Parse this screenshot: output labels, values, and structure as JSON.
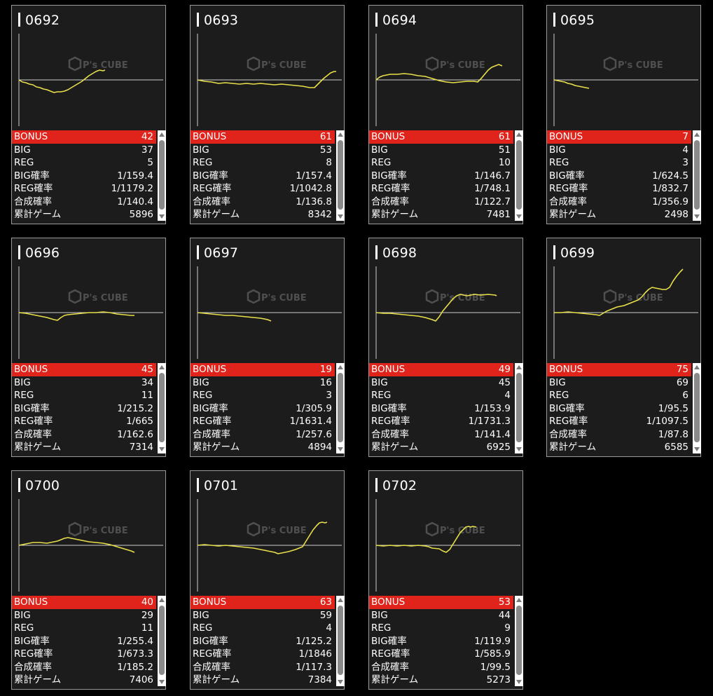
{
  "colors": {
    "background": "#000000",
    "card": "#1c1c1c",
    "bonus_row": "#e0241b",
    "graph_line": "#e8e04a",
    "axis": "#cfcfcf"
  },
  "watermark": {
    "text": "P's CUBE"
  },
  "labels": {
    "bonus": "BONUS",
    "big": "BIG",
    "reg": "REG",
    "big_prob": "BIG確率",
    "reg_prob": "REG確率",
    "combined_prob": "合成確率",
    "total_games": "累計ゲーム"
  },
  "machines": [
    {
      "id": "0692",
      "bonus": "42",
      "big": "37",
      "reg": "5",
      "big_prob": "1/159.4",
      "reg_prob": "1/1179.2",
      "combined_prob": "1/140.4",
      "total_games": "5896",
      "graph": [
        [
          0,
          0
        ],
        [
          5,
          -3
        ],
        [
          10,
          -4
        ],
        [
          15,
          -6
        ],
        [
          20,
          -7
        ],
        [
          25,
          -10
        ],
        [
          30,
          -11
        ],
        [
          35,
          -13
        ],
        [
          40,
          -14
        ],
        [
          45,
          -16
        ],
        [
          50,
          -18
        ],
        [
          55,
          -17
        ],
        [
          60,
          -17
        ],
        [
          65,
          -16
        ],
        [
          70,
          -14
        ],
        [
          75,
          -11
        ],
        [
          80,
          -8
        ],
        [
          85,
          -5
        ],
        [
          90,
          -2
        ],
        [
          95,
          2
        ],
        [
          100,
          6
        ],
        [
          105,
          9
        ],
        [
          110,
          12
        ],
        [
          115,
          14
        ],
        [
          120,
          13
        ],
        [
          123,
          14
        ]
      ]
    },
    {
      "id": "0693",
      "bonus": "61",
      "big": "53",
      "reg": "8",
      "big_prob": "1/157.4",
      "reg_prob": "1/1042.8",
      "combined_prob": "1/136.8",
      "total_games": "8342",
      "graph": [
        [
          0,
          0
        ],
        [
          10,
          -2
        ],
        [
          20,
          -3
        ],
        [
          30,
          -5
        ],
        [
          40,
          -4
        ],
        [
          50,
          -5
        ],
        [
          60,
          -6
        ],
        [
          70,
          -5
        ],
        [
          80,
          -6
        ],
        [
          90,
          -5
        ],
        [
          100,
          -6
        ],
        [
          110,
          -7
        ],
        [
          120,
          -6
        ],
        [
          130,
          -7
        ],
        [
          140,
          -8
        ],
        [
          150,
          -9
        ],
        [
          160,
          -11
        ],
        [
          167,
          -11
        ],
        [
          170,
          -8
        ],
        [
          175,
          -3
        ],
        [
          180,
          2
        ],
        [
          185,
          6
        ],
        [
          190,
          10
        ],
        [
          195,
          12
        ],
        [
          198,
          12
        ]
      ]
    },
    {
      "id": "0694",
      "bonus": "61",
      "big": "51",
      "reg": "10",
      "big_prob": "1/146.7",
      "reg_prob": "1/748.1",
      "combined_prob": "1/122.7",
      "total_games": "7481",
      "graph": [
        [
          0,
          0
        ],
        [
          5,
          4
        ],
        [
          10,
          6
        ],
        [
          15,
          7
        ],
        [
          20,
          8
        ],
        [
          30,
          8
        ],
        [
          40,
          9
        ],
        [
          50,
          8
        ],
        [
          60,
          6
        ],
        [
          70,
          5
        ],
        [
          80,
          2
        ],
        [
          90,
          -1
        ],
        [
          100,
          -3
        ],
        [
          110,
          -4
        ],
        [
          120,
          -3
        ],
        [
          130,
          -2
        ],
        [
          140,
          -2
        ],
        [
          145,
          -3
        ],
        [
          150,
          2
        ],
        [
          155,
          8
        ],
        [
          160,
          14
        ],
        [
          165,
          18
        ],
        [
          170,
          20
        ],
        [
          175,
          22
        ],
        [
          180,
          20
        ]
      ]
    },
    {
      "id": "0695",
      "bonus": "7",
      "big": "4",
      "reg": "3",
      "big_prob": "1/624.5",
      "reg_prob": "1/832.7",
      "combined_prob": "1/356.9",
      "total_games": "2498",
      "graph": [
        [
          0,
          0
        ],
        [
          5,
          -1
        ],
        [
          10,
          -2
        ],
        [
          15,
          -3
        ],
        [
          20,
          -5
        ],
        [
          25,
          -6
        ],
        [
          30,
          -8
        ],
        [
          35,
          -9
        ],
        [
          40,
          -10
        ],
        [
          45,
          -11
        ],
        [
          50,
          -12
        ]
      ]
    },
    {
      "id": "0696",
      "bonus": "45",
      "big": "34",
      "reg": "11",
      "big_prob": "1/215.2",
      "reg_prob": "1/665",
      "combined_prob": "1/162.6",
      "total_games": "7314",
      "graph": [
        [
          0,
          0
        ],
        [
          10,
          -1
        ],
        [
          20,
          -3
        ],
        [
          30,
          -5
        ],
        [
          40,
          -7
        ],
        [
          50,
          -10
        ],
        [
          55,
          -11
        ],
        [
          60,
          -7
        ],
        [
          65,
          -4
        ],
        [
          70,
          -3
        ],
        [
          80,
          -2
        ],
        [
          90,
          -1
        ],
        [
          100,
          0
        ],
        [
          110,
          0
        ],
        [
          120,
          1
        ],
        [
          130,
          0
        ],
        [
          140,
          -2
        ],
        [
          150,
          -3
        ],
        [
          160,
          -4
        ],
        [
          165,
          -4
        ]
      ]
    },
    {
      "id": "0697",
      "bonus": "19",
      "big": "16",
      "reg": "3",
      "big_prob": "1/305.9",
      "reg_prob": "1/1631.4",
      "combined_prob": "1/257.6",
      "total_games": "4894",
      "graph": [
        [
          0,
          0
        ],
        [
          10,
          -1
        ],
        [
          20,
          -2
        ],
        [
          30,
          -3
        ],
        [
          40,
          -4
        ],
        [
          50,
          -4
        ],
        [
          60,
          -5
        ],
        [
          70,
          -6
        ],
        [
          80,
          -7
        ],
        [
          90,
          -8
        ],
        [
          100,
          -10
        ],
        [
          105,
          -12
        ]
      ]
    },
    {
      "id": "0698",
      "bonus": "49",
      "big": "45",
      "reg": "4",
      "big_prob": "1/153.9",
      "reg_prob": "1/1731.3",
      "combined_prob": "1/141.4",
      "total_games": "6925",
      "graph": [
        [
          0,
          0
        ],
        [
          10,
          -1
        ],
        [
          20,
          -1
        ],
        [
          30,
          -2
        ],
        [
          40,
          -3
        ],
        [
          50,
          -4
        ],
        [
          60,
          -5
        ],
        [
          70,
          -7
        ],
        [
          80,
          -10
        ],
        [
          85,
          -12
        ],
        [
          90,
          -6
        ],
        [
          95,
          2
        ],
        [
          100,
          8
        ],
        [
          105,
          14
        ],
        [
          110,
          20
        ],
        [
          115,
          24
        ],
        [
          120,
          26
        ],
        [
          125,
          25
        ],
        [
          130,
          24
        ],
        [
          140,
          26
        ],
        [
          150,
          25
        ],
        [
          160,
          26
        ],
        [
          170,
          25
        ],
        [
          172,
          24
        ]
      ]
    },
    {
      "id": "0699",
      "bonus": "75",
      "big": "69",
      "reg": "6",
      "big_prob": "1/95.5",
      "reg_prob": "1/1097.5",
      "combined_prob": "1/87.8",
      "total_games": "6585",
      "graph": [
        [
          0,
          0
        ],
        [
          10,
          0
        ],
        [
          20,
          1
        ],
        [
          30,
          0
        ],
        [
          40,
          -1
        ],
        [
          50,
          -2
        ],
        [
          60,
          -3
        ],
        [
          65,
          -4
        ],
        [
          70,
          -1
        ],
        [
          75,
          2
        ],
        [
          80,
          4
        ],
        [
          90,
          8
        ],
        [
          100,
          10
        ],
        [
          110,
          14
        ],
        [
          120,
          18
        ],
        [
          125,
          22
        ],
        [
          130,
          28
        ],
        [
          135,
          33
        ],
        [
          140,
          36
        ],
        [
          150,
          34
        ],
        [
          155,
          33
        ],
        [
          160,
          33
        ],
        [
          165,
          36
        ],
        [
          170,
          45
        ],
        [
          175,
          52
        ],
        [
          180,
          58
        ],
        [
          184,
          62
        ]
      ]
    },
    {
      "id": "0700",
      "bonus": "40",
      "big": "29",
      "reg": "11",
      "big_prob": "1/255.4",
      "reg_prob": "1/673.3",
      "combined_prob": "1/185.2",
      "total_games": "7406",
      "graph": [
        [
          0,
          0
        ],
        [
          10,
          2
        ],
        [
          20,
          4
        ],
        [
          30,
          4
        ],
        [
          40,
          3
        ],
        [
          50,
          5
        ],
        [
          55,
          6
        ],
        [
          60,
          8
        ],
        [
          65,
          10
        ],
        [
          70,
          11
        ],
        [
          75,
          10
        ],
        [
          80,
          9
        ],
        [
          90,
          7
        ],
        [
          100,
          5
        ],
        [
          110,
          4
        ],
        [
          120,
          3
        ],
        [
          130,
          1
        ],
        [
          140,
          -2
        ],
        [
          150,
          -5
        ],
        [
          160,
          -8
        ],
        [
          165,
          -10
        ]
      ]
    },
    {
      "id": "0701",
      "bonus": "63",
      "big": "59",
      "reg": "4",
      "big_prob": "1/125.2",
      "reg_prob": "1/1846",
      "combined_prob": "1/117.3",
      "total_games": "7384",
      "graph": [
        [
          0,
          0
        ],
        [
          10,
          1
        ],
        [
          20,
          0
        ],
        [
          30,
          -1
        ],
        [
          40,
          0
        ],
        [
          50,
          -1
        ],
        [
          60,
          -2
        ],
        [
          70,
          -3
        ],
        [
          80,
          -4
        ],
        [
          90,
          -6
        ],
        [
          100,
          -8
        ],
        [
          110,
          -10
        ],
        [
          115,
          -12
        ],
        [
          120,
          -11
        ],
        [
          130,
          -9
        ],
        [
          140,
          -6
        ],
        [
          145,
          -4
        ],
        [
          150,
          -2
        ],
        [
          155,
          6
        ],
        [
          160,
          14
        ],
        [
          165,
          22
        ],
        [
          170,
          28
        ],
        [
          174,
          32
        ],
        [
          178,
          33
        ],
        [
          182,
          32
        ],
        [
          185,
          33
        ]
      ]
    },
    {
      "id": "0702",
      "bonus": "53",
      "big": "44",
      "reg": "9",
      "big_prob": "1/119.9",
      "reg_prob": "1/585.9",
      "combined_prob": "1/99.5",
      "total_games": "5273",
      "graph": [
        [
          0,
          0
        ],
        [
          10,
          -1
        ],
        [
          20,
          0
        ],
        [
          30,
          -1
        ],
        [
          40,
          0
        ],
        [
          50,
          -1
        ],
        [
          60,
          0
        ],
        [
          70,
          -1
        ],
        [
          75,
          -2
        ],
        [
          80,
          -4
        ],
        [
          90,
          -5
        ],
        [
          95,
          -8
        ],
        [
          100,
          -10
        ],
        [
          105,
          -6
        ],
        [
          110,
          2
        ],
        [
          115,
          10
        ],
        [
          120,
          18
        ],
        [
          125,
          23
        ],
        [
          128,
          26
        ],
        [
          132,
          27
        ],
        [
          135,
          26
        ],
        [
          138,
          27
        ],
        [
          143,
          26
        ]
      ]
    }
  ]
}
